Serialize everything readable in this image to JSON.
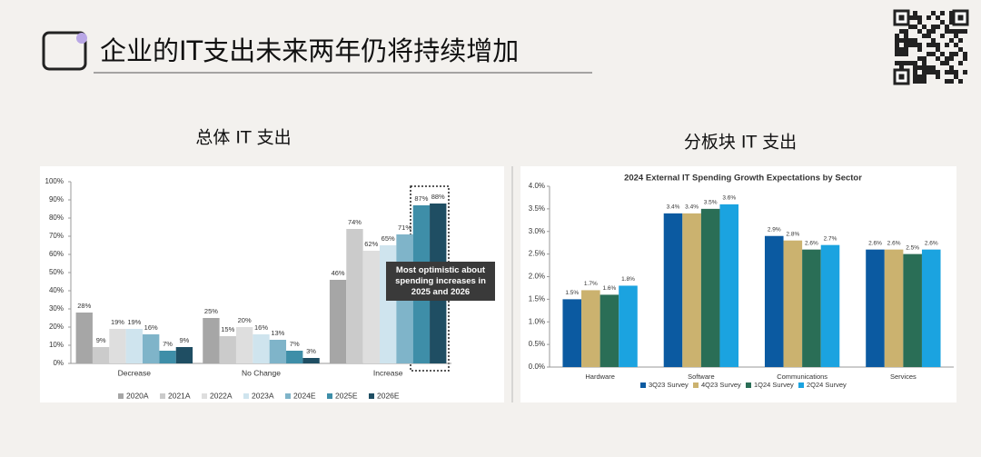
{
  "header": {
    "title": "企业的IT支出未来两年仍将持续增加"
  },
  "sections": [
    "总体 IT 支出",
    "分板块 IT 支出"
  ],
  "chart_data": [
    {
      "type": "bar",
      "categories": [
        "Decrease",
        "No Change",
        "Increase"
      ],
      "series": [
        {
          "name": "2020A",
          "color": "#a6a6a6",
          "values": [
            28,
            25,
            46
          ],
          "value_labels": [
            "28%",
            "25%",
            "46%"
          ]
        },
        {
          "name": "2021A",
          "color": "#cbcbcb",
          "values": [
            9,
            15,
            74
          ],
          "value_labels": [
            "9%",
            "15%",
            "74%"
          ]
        },
        {
          "name": "2022A",
          "color": "#dedede",
          "values": [
            19,
            20,
            62
          ],
          "value_labels": [
            "19%",
            "20%",
            "62%"
          ]
        },
        {
          "name": "2023A",
          "color": "#cfe4ee",
          "values": [
            19,
            16,
            65
          ],
          "value_labels": [
            "19%",
            "16%",
            "65%"
          ]
        },
        {
          "name": "2024E",
          "color": "#7fb4c9",
          "values": [
            16,
            13,
            71
          ],
          "value_labels": [
            "16%",
            "13%",
            "71%"
          ]
        },
        {
          "name": "2025E",
          "color": "#3e8ea8",
          "values": [
            7,
            7,
            87
          ],
          "value_labels": [
            "7%",
            "7%",
            "87%"
          ]
        },
        {
          "name": "2026E",
          "color": "#1f4e63",
          "values": [
            9,
            3,
            88
          ],
          "value_labels": [
            "9%",
            "3%",
            "88%"
          ]
        }
      ],
      "ylim": [
        0,
        100
      ],
      "yticks": [
        {
          "value": 0,
          "label": "0%"
        },
        {
          "value": 10,
          "label": "10%"
        },
        {
          "value": 20,
          "label": "20%"
        },
        {
          "value": 30,
          "label": "30%"
        },
        {
          "value": 40,
          "label": "40%"
        },
        {
          "value": 50,
          "label": "50%"
        },
        {
          "value": 60,
          "label": "60%"
        },
        {
          "value": 70,
          "label": "70%"
        },
        {
          "value": 80,
          "label": "80%"
        },
        {
          "value": 90,
          "label": "90%"
        },
        {
          "value": 100,
          "label": "100%"
        }
      ],
      "annotation": "Most optimistic about spending increases in 2025 and 2026",
      "legend": "bottom"
    },
    {
      "type": "bar",
      "title": "2024 External IT Spending Growth Expectations by Sector",
      "categories": [
        "Hardware",
        "Software",
        "Communications",
        "Services"
      ],
      "series": [
        {
          "name": "3Q23 Survey",
          "color": "#0b5aa1",
          "values": [
            1.5,
            3.4,
            2.9,
            2.6
          ],
          "value_labels": [
            "1.5%",
            "3.4%",
            "2.9%",
            "2.6%"
          ]
        },
        {
          "name": "4Q23 Survey",
          "color": "#cbb26f",
          "values": [
            1.7,
            3.4,
            2.8,
            2.6
          ],
          "value_labels": [
            "1.7%",
            "3.4%",
            "2.8%",
            "2.6%"
          ]
        },
        {
          "name": "1Q24 Survey",
          "color": "#2a6e56",
          "values": [
            1.6,
            3.5,
            2.6,
            2.5
          ],
          "value_labels": [
            "1.6%",
            "3.5%",
            "2.6%",
            "2.5%"
          ]
        },
        {
          "name": "2Q24 Survey",
          "color": "#1ba3e0",
          "values": [
            1.8,
            3.6,
            2.7,
            2.6
          ],
          "value_labels": [
            "1.8%",
            "3.6%",
            "2.7%",
            "2.6%"
          ]
        }
      ],
      "ylim": [
        0,
        4
      ],
      "yticks": [
        {
          "value": 0,
          "label": "0.0%"
        },
        {
          "value": 0.5,
          "label": "0.5%"
        },
        {
          "value": 1,
          "label": "1.0%"
        },
        {
          "value": 1.5,
          "label": "1.5%"
        },
        {
          "value": 2,
          "label": "2.0%"
        },
        {
          "value": 2.5,
          "label": "2.5%"
        },
        {
          "value": 3,
          "label": "3.0%"
        },
        {
          "value": 3.5,
          "label": "3.5%"
        },
        {
          "value": 4,
          "label": "4.0%"
        }
      ],
      "legend": "bottom"
    }
  ]
}
